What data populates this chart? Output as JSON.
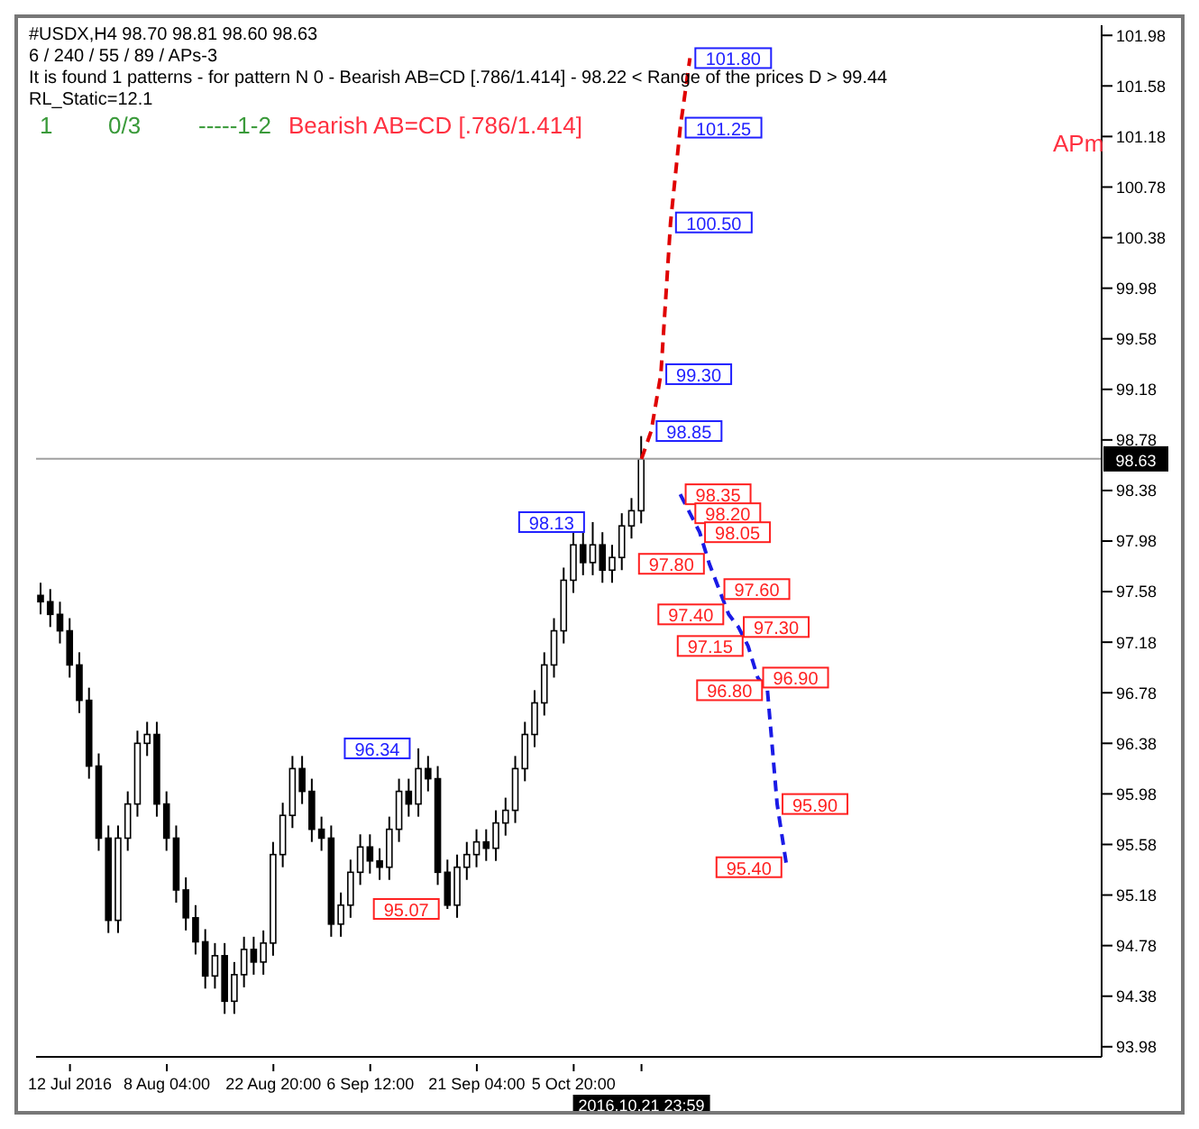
{
  "chart_data": {
    "type": "candlestick",
    "title": "#USDX,H4  98.70 98.81 98.60 98.63",
    "subtitle": "6 / 240 / 55 / 89 / APs-3",
    "categories": [
      null,
      null,
      null,
      "12 Jul 2016",
      null,
      null,
      null,
      null,
      null,
      null,
      null,
      null,
      null,
      "8 Aug 04:00",
      null,
      null,
      null,
      null,
      null,
      null,
      null,
      null,
      null,
      null,
      "22 Aug 20:00",
      null,
      null,
      null,
      null,
      null,
      null,
      null,
      null,
      null,
      "6 Sep 12:00",
      null,
      null,
      null,
      null,
      null,
      null,
      null,
      null,
      null,
      null,
      "21 Sep 04:00",
      null,
      null,
      null,
      null,
      null,
      null,
      null,
      null,
      null,
      "5 Oct 20:00",
      null,
      null,
      null,
      null,
      null,
      null,
      "2016.10.21 23:59",
      null,
      null,
      null,
      null,
      null,
      null,
      null,
      null,
      null,
      null,
      null,
      null,
      null,
      null,
      null,
      null,
      null,
      null,
      null,
      null,
      null,
      null,
      null,
      null,
      null,
      null,
      null,
      null,
      null,
      null,
      null,
      null,
      null,
      null,
      null,
      null,
      null,
      null,
      null,
      null,
      null,
      null,
      null,
      null,
      null,
      null,
      null
    ],
    "ohlc": [
      [
        97.55,
        97.65,
        97.4,
        97.5
      ],
      [
        97.5,
        97.6,
        97.3,
        97.4
      ],
      [
        97.4,
        97.5,
        97.17,
        97.27
      ],
      [
        97.27,
        97.37,
        96.9,
        97.0
      ],
      [
        97.0,
        97.1,
        96.62,
        96.72
      ],
      [
        96.72,
        96.82,
        96.1,
        96.2
      ],
      [
        96.2,
        96.3,
        95.53,
        95.63
      ],
      [
        95.63,
        95.73,
        94.88,
        94.98
      ],
      [
        94.98,
        95.73,
        94.88,
        95.63
      ],
      [
        95.63,
        96.0,
        95.53,
        95.9
      ],
      [
        95.9,
        96.48,
        95.8,
        96.38
      ],
      [
        96.38,
        96.55,
        96.28,
        96.45
      ],
      [
        96.45,
        96.55,
        95.8,
        95.9
      ],
      [
        95.9,
        96.0,
        95.53,
        95.63
      ],
      [
        95.63,
        95.73,
        95.12,
        95.22
      ],
      [
        95.22,
        95.32,
        94.9,
        95.0
      ],
      [
        95.0,
        95.1,
        94.71,
        94.81
      ],
      [
        94.81,
        94.91,
        94.44,
        94.54
      ],
      [
        94.54,
        94.8,
        94.44,
        94.7
      ],
      [
        94.7,
        94.8,
        94.24,
        94.34
      ],
      [
        94.34,
        94.65,
        94.24,
        94.55
      ],
      [
        94.55,
        94.85,
        94.45,
        94.75
      ],
      [
        94.75,
        94.85,
        94.55,
        94.65
      ],
      [
        94.65,
        94.9,
        94.55,
        94.8
      ],
      [
        94.8,
        95.6,
        94.7,
        95.5
      ],
      [
        95.5,
        95.91,
        95.4,
        95.81
      ],
      [
        95.81,
        96.28,
        95.71,
        96.18
      ],
      [
        96.18,
        96.28,
        95.9,
        96.0
      ],
      [
        96.0,
        96.1,
        95.6,
        95.7
      ],
      [
        95.7,
        95.8,
        95.53,
        95.63
      ],
      [
        95.63,
        95.73,
        94.85,
        94.95
      ],
      [
        94.95,
        95.2,
        94.85,
        95.1
      ],
      [
        95.1,
        95.46,
        95.0,
        95.36
      ],
      [
        95.36,
        95.66,
        95.26,
        95.56
      ],
      [
        95.56,
        95.66,
        95.35,
        95.45
      ],
      [
        95.45,
        95.55,
        95.3,
        95.4
      ],
      [
        95.4,
        95.8,
        95.3,
        95.7
      ],
      [
        95.7,
        96.1,
        95.6,
        96.0
      ],
      [
        96.0,
        96.1,
        95.8,
        95.9
      ],
      [
        95.9,
        96.34,
        95.8,
        96.18
      ],
      [
        96.18,
        96.28,
        96.0,
        96.1
      ],
      [
        96.1,
        96.2,
        95.26,
        95.36
      ],
      [
        95.36,
        95.46,
        95.07,
        95.1
      ],
      [
        95.1,
        95.5,
        95.0,
        95.4
      ],
      [
        95.4,
        95.6,
        95.3,
        95.5
      ],
      [
        95.5,
        95.7,
        95.4,
        95.6
      ],
      [
        95.6,
        95.7,
        95.45,
        95.55
      ],
      [
        95.55,
        95.85,
        95.45,
        95.75
      ],
      [
        95.75,
        95.95,
        95.65,
        95.85
      ],
      [
        95.85,
        96.28,
        95.75,
        96.18
      ],
      [
        96.18,
        96.55,
        96.08,
        96.45
      ],
      [
        96.45,
        96.8,
        96.35,
        96.7
      ],
      [
        96.7,
        97.1,
        96.6,
        97.0
      ],
      [
        97.0,
        97.37,
        96.9,
        97.27
      ],
      [
        97.27,
        97.77,
        97.17,
        97.67
      ],
      [
        97.67,
        98.05,
        97.57,
        97.95
      ],
      [
        97.95,
        98.05,
        97.71,
        97.81
      ],
      [
        97.81,
        98.13,
        97.71,
        97.95
      ],
      [
        97.95,
        98.05,
        97.65,
        97.75
      ],
      [
        97.75,
        97.95,
        97.65,
        97.85
      ],
      [
        97.85,
        98.2,
        97.75,
        98.1
      ],
      [
        98.1,
        98.32,
        98.0,
        98.22
      ],
      [
        98.22,
        98.81,
        98.12,
        98.63
      ],
      null,
      null,
      null,
      null,
      null,
      null,
      null,
      null,
      null,
      null,
      null,
      null,
      null,
      null,
      null,
      null,
      null,
      null,
      null,
      null,
      null,
      null,
      null,
      null,
      null,
      null,
      null,
      null,
      null,
      null,
      null,
      null,
      null,
      null,
      null,
      null,
      null,
      null,
      null,
      null,
      null,
      null,
      null,
      null,
      null,
      null,
      null
    ],
    "series": [
      {
        "type": "line",
        "color": "#e00000",
        "line_style": "dashed",
        "values": [
          null,
          null,
          null,
          null,
          null,
          null,
          null,
          null,
          null,
          null,
          null,
          null,
          null,
          null,
          null,
          null,
          null,
          null,
          null,
          null,
          null,
          null,
          null,
          null,
          null,
          null,
          null,
          null,
          null,
          null,
          null,
          null,
          null,
          null,
          null,
          null,
          null,
          null,
          null,
          null,
          null,
          null,
          null,
          null,
          null,
          null,
          null,
          null,
          null,
          null,
          null,
          null,
          null,
          null,
          null,
          null,
          null,
          null,
          null,
          null,
          null,
          null,
          98.63,
          98.85,
          99.3,
          100.5,
          101.25,
          101.8,
          null,
          null,
          null,
          null,
          null,
          null,
          null,
          null,
          null,
          null,
          null,
          null,
          null,
          null,
          null,
          null,
          null,
          null,
          null,
          null,
          null,
          null,
          null,
          null,
          null,
          null,
          null,
          null,
          null,
          null,
          null,
          null,
          null,
          null,
          null,
          null,
          null,
          null,
          null,
          null,
          null,
          null
        ],
        "value_labels": [
          null,
          null,
          null,
          null,
          null,
          null,
          null,
          null,
          null,
          null,
          null,
          null,
          null,
          null,
          null,
          null,
          null,
          null,
          null,
          null,
          null,
          null,
          null,
          null,
          null,
          null,
          null,
          null,
          null,
          null,
          null,
          null,
          null,
          null,
          null,
          null,
          null,
          null,
          null,
          null,
          null,
          null,
          null,
          null,
          null,
          null,
          null,
          null,
          null,
          null,
          null,
          null,
          null,
          null,
          null,
          null,
          null,
          null,
          null,
          null,
          null,
          null,
          null,
          "98.85",
          "99.30",
          "100.50",
          "101.25",
          "101.80",
          null,
          null,
          null,
          null,
          null,
          null,
          null,
          null,
          null,
          null,
          null,
          null,
          null,
          null,
          null,
          null,
          null,
          null,
          null,
          null,
          null,
          null,
          null,
          null,
          null,
          null,
          null,
          null,
          null,
          null,
          null,
          null,
          null,
          null,
          null,
          null,
          null,
          null,
          null,
          null,
          null,
          null
        ]
      },
      {
        "type": "line",
        "color": "#1a1ae6",
        "line_style": "dashed",
        "values": [
          null,
          null,
          null,
          null,
          null,
          null,
          null,
          null,
          null,
          null,
          null,
          null,
          null,
          null,
          null,
          null,
          null,
          null,
          null,
          null,
          null,
          null,
          null,
          null,
          null,
          null,
          null,
          null,
          null,
          null,
          null,
          null,
          null,
          null,
          null,
          null,
          null,
          null,
          null,
          null,
          null,
          null,
          null,
          null,
          null,
          null,
          null,
          null,
          null,
          null,
          null,
          null,
          null,
          null,
          null,
          null,
          null,
          null,
          null,
          null,
          null,
          null,
          null,
          null,
          null,
          null,
          98.35,
          98.2,
          98.05,
          97.8,
          97.6,
          97.4,
          97.3,
          97.15,
          96.9,
          96.8,
          95.9,
          95.4,
          null,
          null,
          null,
          null,
          null,
          null,
          null,
          null,
          null,
          null,
          null,
          null,
          null,
          null,
          null,
          null,
          null,
          null,
          null,
          null,
          null,
          null,
          null,
          null,
          null,
          null,
          null,
          null,
          null,
          null,
          null,
          null
        ],
        "value_labels": [
          null,
          null,
          null,
          null,
          null,
          null,
          null,
          null,
          null,
          null,
          null,
          null,
          null,
          null,
          null,
          null,
          null,
          null,
          null,
          null,
          null,
          null,
          null,
          null,
          null,
          null,
          null,
          null,
          null,
          null,
          null,
          null,
          null,
          null,
          null,
          null,
          null,
          null,
          null,
          null,
          null,
          null,
          null,
          null,
          null,
          null,
          null,
          null,
          null,
          null,
          null,
          null,
          null,
          null,
          null,
          null,
          null,
          null,
          null,
          null,
          null,
          null,
          null,
          null,
          null,
          null,
          "98.35",
          "98.20",
          "98.05",
          "97.80",
          "97.60",
          "97.40",
          "97.30",
          "97.15",
          "96.90",
          "96.80",
          "95.90",
          "95.40",
          null,
          null,
          null,
          null,
          null,
          null,
          null,
          null,
          null,
          null,
          null,
          null,
          null,
          null,
          null,
          null,
          null,
          null,
          null,
          null,
          null,
          null,
          null,
          null,
          null,
          null,
          null,
          null,
          null,
          null,
          null,
          null
        ]
      }
    ],
    "ylim": [
      93.9,
      102.06
    ],
    "yticks": [
      93.98,
      94.38,
      94.78,
      95.18,
      95.58,
      95.98,
      96.38,
      96.78,
      97.18,
      97.58,
      97.98,
      98.38,
      98.78,
      99.18,
      99.58,
      99.98,
      100.38,
      100.78,
      101.18,
      101.58,
      101.98
    ],
    "grid": false,
    "legend": false,
    "ref_lines": [
      {
        "axis": "y",
        "value": 98.63,
        "label": "98.63",
        "color": "#a0a0a0"
      }
    ],
    "annotations": [
      "It is found 1 patterns  -  for pattern N 0 - Bearish AB=CD [.786/1.414] - 98.22 < Range of the prices D > 99.44",
      "RL_Static=12.1",
      "1",
      "0/3",
      "-----1-2",
      "Bearish AB=CD [.786/1.414]",
      "APm",
      {
        "text": "98.13",
        "y": 98.13
      },
      {
        "text": "96.34",
        "y": 96.34
      },
      {
        "text": "95.07",
        "y": 95.07
      }
    ]
  }
}
